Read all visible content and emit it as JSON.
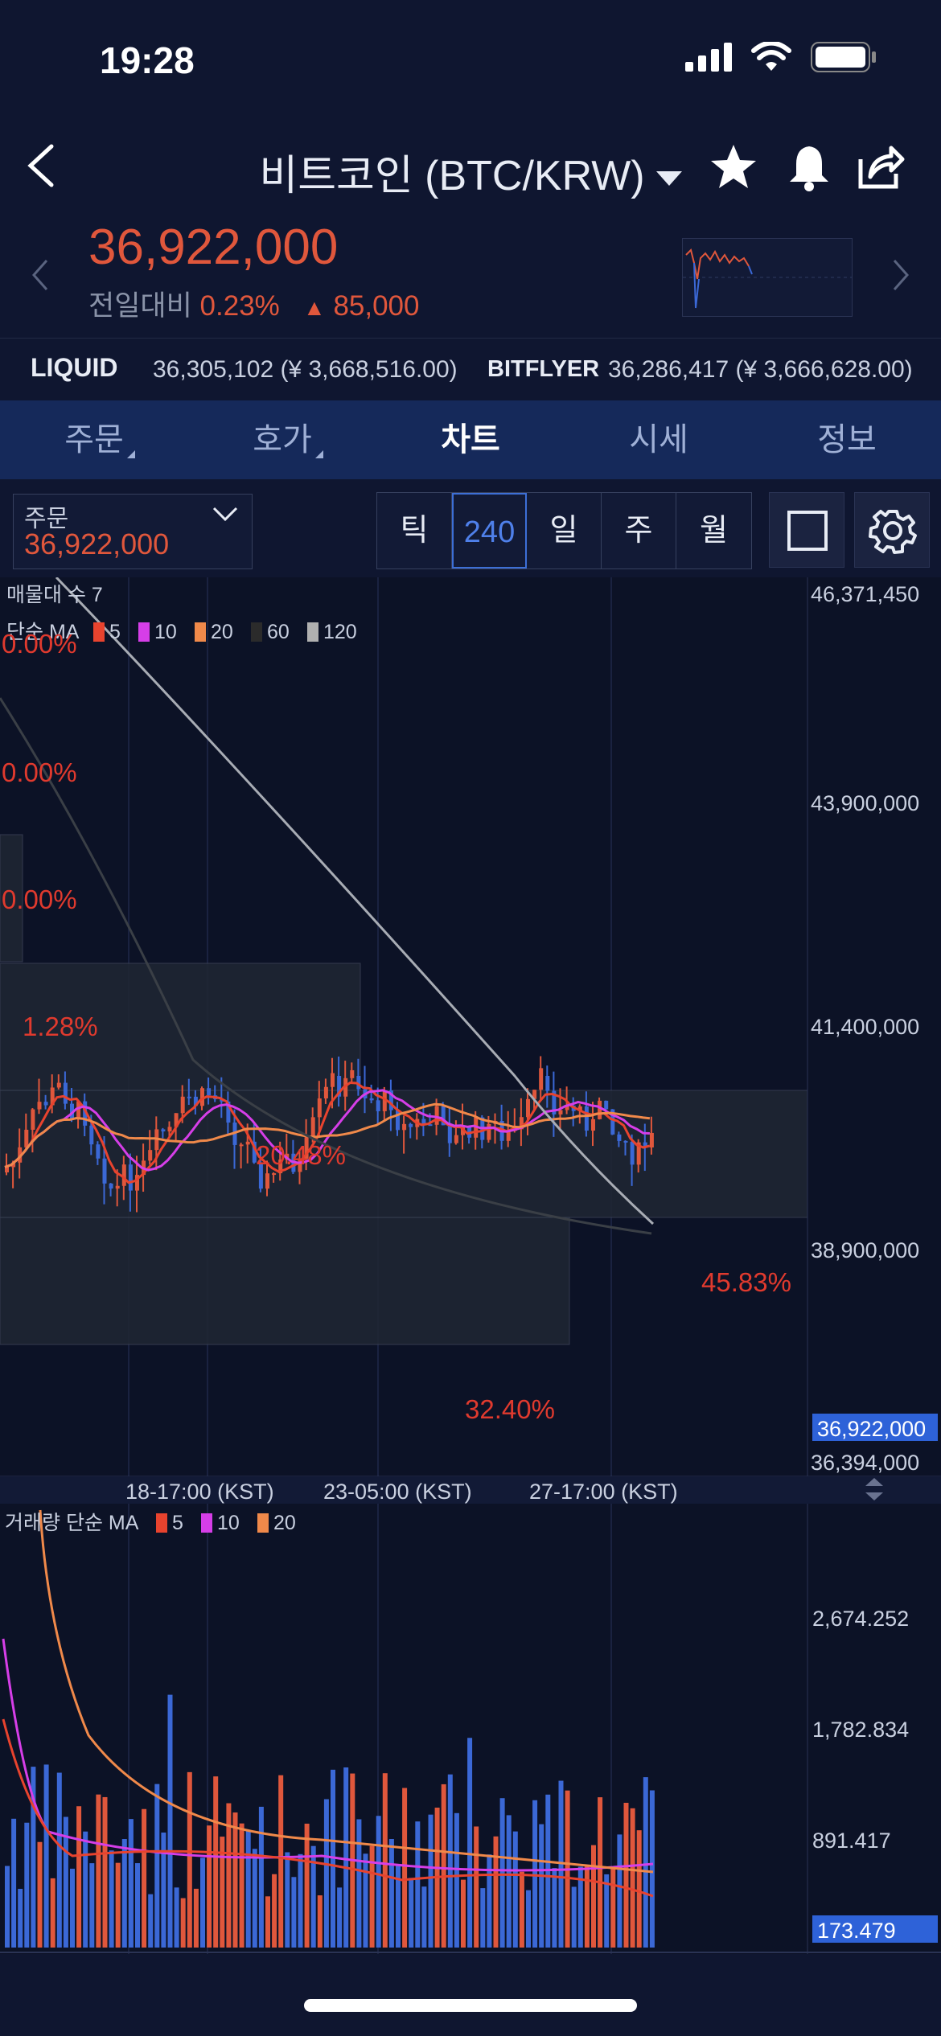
{
  "status": {
    "time": "19:28"
  },
  "header": {
    "title": "비트코인 (BTC/KRW)"
  },
  "price": {
    "current": "36,922,000",
    "change_label": "전일대비",
    "change_pct": "0.23%",
    "change_amount": "85,000"
  },
  "exchanges": [
    {
      "name": "LIQUID",
      "value": "36,305,102 (¥ 3,668,516.00)"
    },
    {
      "name": "BITFLYER",
      "value": "36,286,417 (¥ 3,666,628.00)"
    }
  ],
  "tabs": [
    {
      "label": "주문"
    },
    {
      "label": "호가"
    },
    {
      "label": "차트"
    },
    {
      "label": "시세"
    },
    {
      "label": "정보"
    }
  ],
  "toolbar": {
    "order_label": "주문",
    "order_value": "36,922,000",
    "intervals": [
      "틱",
      "240",
      "일",
      "주",
      "월"
    ],
    "selected_interval": "240"
  },
  "chart": {
    "volume_profile_label": "매물대 수 7",
    "ma_label": "단순 MA",
    "ma_periods": [
      "5",
      "10",
      "20",
      "60",
      "120"
    ],
    "ma_colors": [
      "#e8432e",
      "#d63ee8",
      "#f0894a",
      "#2b2b2b",
      "#b0b0b0"
    ],
    "price_axis": [
      "46,371,450",
      "43,900,000",
      "41,400,000",
      "38,900,000",
      "36,394,000"
    ],
    "current_price_badge": "36,922,000",
    "profile_pcts": [
      "0.00%",
      "0.00%",
      "0.00%",
      "1.28%",
      "20.48%",
      "45.83%",
      "32.40%"
    ],
    "time_axis": [
      "18-17:00 (KST)",
      "23-05:00 (KST)",
      "27-17:00 (KST)"
    ],
    "volume_label": "거래량 단순 MA",
    "volume_ma_periods": [
      "5",
      "10",
      "20"
    ],
    "volume_axis": [
      "2,674.252",
      "1,782.834",
      "891.417"
    ],
    "volume_badge": "173.479",
    "up_color": "#e0573c",
    "down_color": "#3b68d6"
  }
}
